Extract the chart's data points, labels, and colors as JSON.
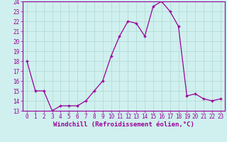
{
  "x": [
    0,
    1,
    2,
    3,
    4,
    5,
    6,
    7,
    8,
    9,
    10,
    11,
    12,
    13,
    14,
    15,
    16,
    17,
    18,
    19,
    20,
    21,
    22,
    23
  ],
  "y": [
    18,
    15,
    15,
    13,
    13.5,
    13.5,
    13.5,
    14,
    15,
    16,
    18.5,
    20.5,
    22,
    21.8,
    20.5,
    23.5,
    24,
    23,
    21.5,
    14.5,
    14.7,
    14.2,
    14,
    14.2
  ],
  "line_color": "#990099",
  "marker": "+",
  "bg_color": "#cff0ee",
  "grid_color": "#b0d8d0",
  "xlabel": "Windchill (Refroidissement éolien,°C)",
  "xlim": [
    -0.5,
    23.5
  ],
  "ylim": [
    13,
    24
  ],
  "yticks": [
    13,
    14,
    15,
    16,
    17,
    18,
    19,
    20,
    21,
    22,
    23,
    24
  ],
  "xticks": [
    0,
    1,
    2,
    3,
    4,
    5,
    6,
    7,
    8,
    9,
    10,
    11,
    12,
    13,
    14,
    15,
    16,
    17,
    18,
    19,
    20,
    21,
    22,
    23
  ],
  "tick_color": "#990099",
  "label_color": "#990099",
  "tick_fontsize": 5.5,
  "xlabel_fontsize": 6.5
}
